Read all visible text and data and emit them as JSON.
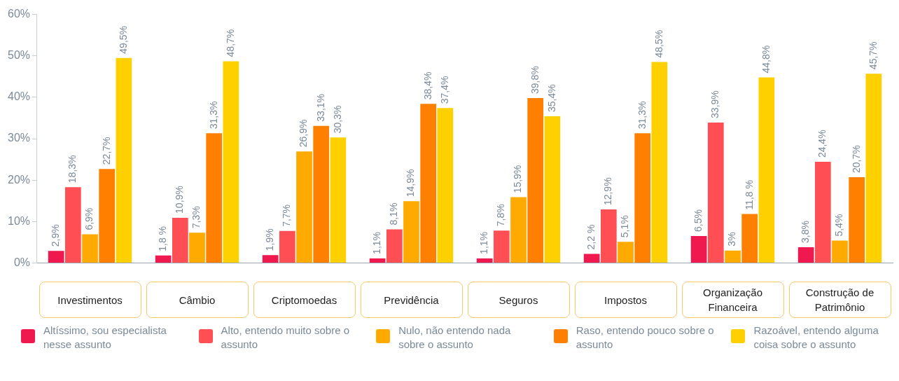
{
  "chart_data": {
    "type": "bar",
    "categories": [
      "Investimentos",
      "Câmbio",
      "Criptomoedas",
      "Previdência",
      "Seguros",
      "Impostos",
      "Organização Financeira",
      "Construção de Patrimônio"
    ],
    "series": [
      {
        "name": "Altíssimo, sou especialista nesse assunto",
        "color": "#f0194f",
        "values": [
          2.9,
          1.8,
          1.9,
          1.1,
          1.1,
          2.2,
          6.5,
          3.8
        ],
        "value_labels": [
          "2,9%",
          "1,8 %",
          "1,9%",
          "1,1%",
          "1,1%",
          "2,2 %",
          "6,5%",
          "3,8%"
        ]
      },
      {
        "name": "Alto, entendo muito sobre o assunto",
        "color": "#ff4f55",
        "values": [
          18.3,
          10.9,
          7.7,
          8.1,
          7.8,
          12.9,
          33.9,
          24.4
        ],
        "value_labels": [
          "18,3%",
          "10,9%",
          "7,7%",
          "8,1%",
          "7,8%",
          "12,9%",
          "33,9%",
          "24,4%"
        ]
      },
      {
        "name": "Nulo, não entendo nada sobre o assunto",
        "color": "#ffaa00",
        "values": [
          6.9,
          7.3,
          26.9,
          14.9,
          15.9,
          5.1,
          3,
          5.4
        ],
        "value_labels": [
          "6,9%",
          "7,3%",
          "26,9%",
          "14,9%",
          "15,9%",
          "5,1%",
          "3%",
          "5,4%"
        ]
      },
      {
        "name": "Raso, entendo pouco sobre o assunto",
        "color": "#ff8000",
        "values": [
          22.7,
          31.3,
          33.1,
          38.4,
          39.8,
          31.3,
          11.8,
          20.7
        ],
        "value_labels": [
          "22,7%",
          "31,3%",
          "33,1%",
          "38,4%",
          "39,8%",
          "31,3%",
          "11,8 %",
          "20,7%"
        ]
      },
      {
        "name": "Razoável, entendo alguma coisa sobre o assunto",
        "color": "#ffd000",
        "values": [
          49.5,
          48.7,
          30.3,
          37.4,
          35.4,
          48.5,
          44.8,
          45.7
        ],
        "value_labels": [
          "49,5%",
          "48,7%",
          "30,3%",
          "37,4%",
          "35,4%",
          "48,5%",
          "44,8%",
          "45,7%"
        ]
      }
    ],
    "ylim": [
      0,
      60
    ],
    "yticks": [
      {
        "value": 0,
        "label": "0%"
      },
      {
        "value": 10,
        "label": "10%"
      },
      {
        "value": 20,
        "label": "20%"
      },
      {
        "value": 30,
        "label": "30%"
      },
      {
        "value": 40,
        "label": "40%"
      },
      {
        "value": 50,
        "label": "50%"
      },
      {
        "value": 60,
        "label": "60%"
      }
    ],
    "grid": false,
    "legend": "bottom"
  }
}
